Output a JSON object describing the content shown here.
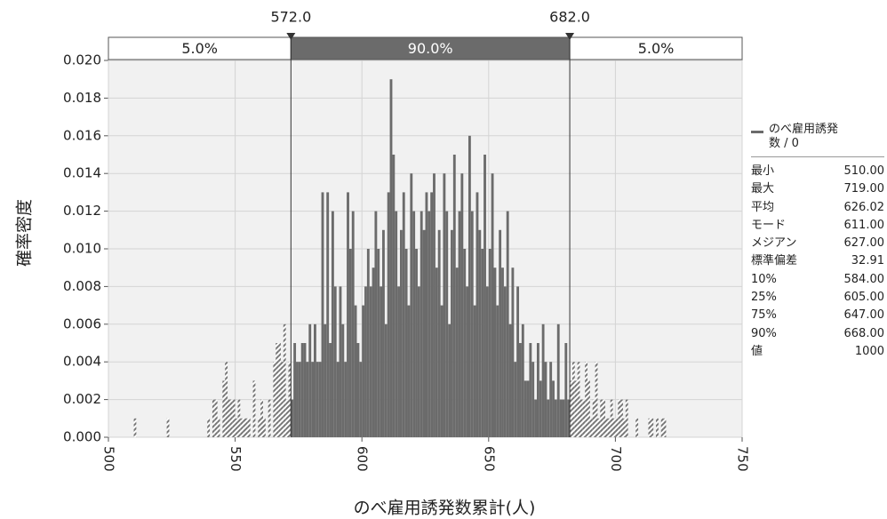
{
  "chart_data": {
    "type": "histogram",
    "title_x": "のべ雇用誘発数累計(人)",
    "ylabel": "確率密度",
    "bins": [
      510,
      511,
      512,
      513,
      514,
      515,
      516,
      517,
      518,
      519,
      520,
      521,
      522,
      523,
      524,
      525,
      526,
      527,
      528,
      529,
      530,
      531,
      532,
      533,
      534,
      535,
      536,
      537,
      538,
      539,
      540,
      541,
      542,
      543,
      544,
      545,
      546,
      547,
      548,
      549,
      550,
      551,
      552,
      553,
      554,
      555,
      556,
      557,
      558,
      559,
      560,
      561,
      562,
      563,
      564,
      565,
      566,
      567,
      568,
      569,
      570,
      571,
      572,
      573,
      574,
      575,
      576,
      577,
      578,
      579,
      580,
      581,
      582,
      583,
      584,
      585,
      586,
      587,
      588,
      589,
      590,
      591,
      592,
      593,
      594,
      595,
      596,
      597,
      598,
      599,
      600,
      601,
      602,
      603,
      604,
      605,
      606,
      607,
      608,
      609,
      610,
      611,
      612,
      613,
      614,
      615,
      616,
      617,
      618,
      619,
      620,
      621,
      622,
      623,
      624,
      625,
      626,
      627,
      628,
      629,
      630,
      631,
      632,
      633,
      634,
      635,
      636,
      637,
      638,
      639,
      640,
      641,
      642,
      643,
      644,
      645,
      646,
      647,
      648,
      649,
      650,
      651,
      652,
      653,
      654,
      655,
      656,
      657,
      658,
      659,
      660,
      661,
      662,
      663,
      664,
      665,
      666,
      667,
      668,
      669,
      670,
      671,
      672,
      673,
      674,
      675,
      676,
      677,
      678,
      679,
      680,
      681,
      682,
      683,
      684,
      685,
      686,
      687,
      688,
      689,
      690,
      691,
      692,
      693,
      694,
      695,
      696,
      697,
      698,
      699,
      700,
      701,
      702,
      703,
      704,
      705,
      706,
      707,
      708,
      709,
      710,
      711,
      712,
      713,
      714,
      715,
      716,
      717,
      718,
      719,
      720
    ],
    "series": [
      {
        "name": "のべ雇用誘発数 / 0",
        "color": "#6b6b6b",
        "values": [
          0.001,
          0,
          0,
          0,
          0,
          0,
          0,
          0,
          0,
          0,
          0,
          0,
          0,
          0.001,
          0,
          0,
          0,
          0,
          0,
          0,
          0,
          0,
          0,
          0,
          0,
          0,
          0,
          0,
          0,
          0.001,
          0,
          0.002,
          0.002,
          0.001,
          0,
          0.003,
          0.004,
          0.002,
          0.002,
          0.002,
          0.001,
          0.002,
          0.001,
          0.001,
          0.001,
          0.001,
          0,
          0.003,
          0,
          0.001,
          0.002,
          0.001,
          0,
          0.002,
          0,
          0.004,
          0.005,
          0.005,
          0.004,
          0.006,
          0.002,
          0.004,
          0.002,
          0.005,
          0.004,
          0.004,
          0.005,
          0.005,
          0.004,
          0.006,
          0.004,
          0.006,
          0.004,
          0.004,
          0.013,
          0.006,
          0.013,
          0.005,
          0.012,
          0.008,
          0.004,
          0.008,
          0.006,
          0.004,
          0.013,
          0.01,
          0.012,
          0.007,
          0.005,
          0.004,
          0.007,
          0.008,
          0.01,
          0.008,
          0.009,
          0.012,
          0.01,
          0.008,
          0.011,
          0.006,
          0.013,
          0.019,
          0.015,
          0.012,
          0.008,
          0.011,
          0.013,
          0.01,
          0.007,
          0.014,
          0.012,
          0.01,
          0.008,
          0.012,
          0.011,
          0.013,
          0.012,
          0.013,
          0.014,
          0.009,
          0.011,
          0.007,
          0.014,
          0.012,
          0.006,
          0.011,
          0.015,
          0.009,
          0.012,
          0.014,
          0.01,
          0.008,
          0.016,
          0.012,
          0.007,
          0.013,
          0.011,
          0.01,
          0.015,
          0.008,
          0.01,
          0.014,
          0.009,
          0.007,
          0.011,
          0.009,
          0.008,
          0.012,
          0.006,
          0.009,
          0.004,
          0.008,
          0.005,
          0.006,
          0.003,
          0.003,
          0.005,
          0.004,
          0.002,
          0.005,
          0.003,
          0.006,
          0.004,
          0.002,
          0.004,
          0.003,
          0.002,
          0.006,
          0.002,
          0.002,
          0.005,
          0.002,
          0.003,
          0.004,
          0.003,
          0.004,
          0.002,
          0.002,
          0.004,
          0.003,
          0.001,
          0.002,
          0.004,
          0.001,
          0.002,
          0.002,
          0.001,
          0.001,
          0.002,
          0.001,
          0.001,
          0.002,
          0.002,
          0.001,
          0.002,
          0,
          0,
          0,
          0.001,
          0,
          0,
          0,
          0,
          0.001,
          0.001,
          0,
          0.001,
          0,
          0.001,
          0.001
        ]
      }
    ],
    "xlim": [
      500,
      750
    ],
    "xticks": [
      500,
      550,
      600,
      650,
      700,
      750
    ],
    "ylim": [
      0,
      0.02
    ],
    "yticks": [
      {
        "value": 0,
        "label": "0.000"
      },
      {
        "value": 0.002,
        "label": "0.002"
      },
      {
        "value": 0.004,
        "label": "0.004"
      },
      {
        "value": 0.006,
        "label": "0.006"
      },
      {
        "value": 0.008,
        "label": "0.008"
      },
      {
        "value": 0.01,
        "label": "0.010"
      },
      {
        "value": 0.012,
        "label": "0.012"
      },
      {
        "value": 0.014,
        "label": "0.014"
      },
      {
        "value": 0.016,
        "label": "0.016"
      },
      {
        "value": 0.018,
        "label": "0.018"
      },
      {
        "value": 0.02,
        "label": "0.020"
      }
    ],
    "grid": true,
    "delimiters": [
      {
        "value": 572,
        "label": "572.0"
      },
      {
        "value": 682,
        "label": "682.0"
      }
    ],
    "band_labels": [
      "5.0%",
      "90.0%",
      "5.0%"
    ],
    "stats": [
      [
        "最小",
        "510.00"
      ],
      [
        "最大",
        "719.00"
      ],
      [
        "平均",
        "626.02"
      ],
      [
        "モード",
        "611.00"
      ],
      [
        "メジアン",
        "627.00"
      ],
      [
        "標準偏差",
        "32.91"
      ],
      [
        "10%",
        "584.00"
      ],
      [
        "25%",
        "605.00"
      ],
      [
        "75%",
        "647.00"
      ],
      [
        "90%",
        "668.00"
      ],
      [
        "値",
        "1000"
      ]
    ]
  }
}
